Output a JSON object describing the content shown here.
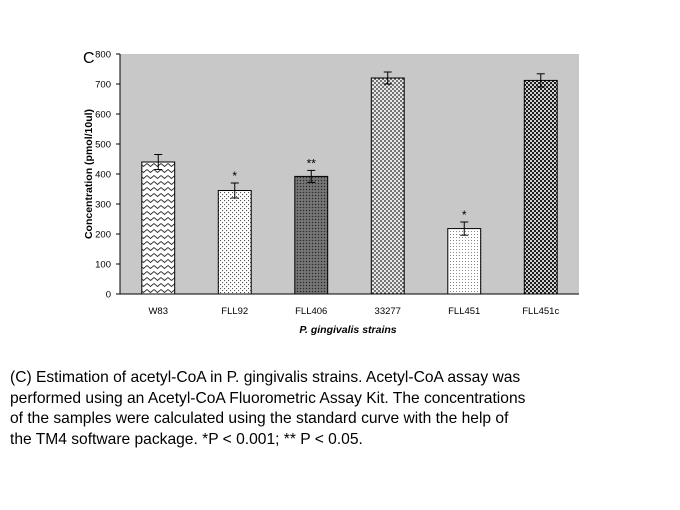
{
  "panel_label": "C",
  "chart_data": {
    "type": "bar",
    "title": "",
    "xlabel": "P. gingivalis strains",
    "ylabel": "Concentration (pmol/10ul)",
    "ylim": [
      0,
      800
    ],
    "yticks": [
      0,
      100,
      200,
      300,
      400,
      500,
      600,
      700,
      800
    ],
    "grid": false,
    "categories": [
      "W83",
      "FLL92",
      "FLL406",
      "33277",
      "FLL451",
      "FLL451c"
    ],
    "values": [
      440,
      345,
      392,
      720,
      218,
      712
    ],
    "errors": [
      25,
      25,
      20,
      20,
      22,
      22
    ],
    "significance": [
      "",
      "*",
      "**",
      "",
      "*",
      ""
    ],
    "patterns": [
      "zigzag",
      "dots-sparse",
      "dark-fine",
      "dots-dense",
      "dots-fine",
      "checker"
    ]
  },
  "caption": "(C) Estimation of acetyl-CoA in P. gingivalis strains. Acetyl-CoA assay was\nperformed using an Acetyl-CoA Fluorometric Assay Kit. The concentrations\nof the samples were calculated using the standard curve with the help of\nthe TM4 software package. *P < 0.001; ** P < 0.05."
}
